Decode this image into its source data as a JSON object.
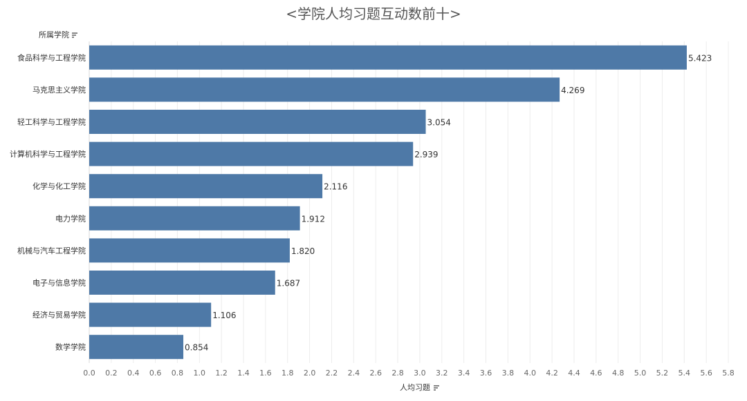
{
  "chart_data": {
    "type": "bar",
    "orientation": "horizontal",
    "title": "<学院人均习题互动数前十>",
    "ylabel": "所属学院",
    "xlabel": "人均习题",
    "categories": [
      "食品科学与工程学院",
      "马克思主义学院",
      "轻工科学与工程学院",
      "计算机科学与工程学院",
      "化学与化工学院",
      "电力学院",
      "机械与汽车工程学院",
      "电子与信息学院",
      "经济与贸易学院",
      "数学学院"
    ],
    "values": [
      5.423,
      4.269,
      3.054,
      2.939,
      2.116,
      1.912,
      1.82,
      1.687,
      1.106,
      0.854
    ],
    "value_labels": [
      "5.423",
      "4.269",
      "3.054",
      "2.939",
      "2.116",
      "1.912",
      "1.820",
      "1.687",
      "1.106",
      "0.854"
    ],
    "xlim": [
      0,
      5.8
    ],
    "x_ticks": [
      "0.0",
      "0.2",
      "0.4",
      "0.6",
      "0.8",
      "1.0",
      "1.2",
      "1.4",
      "1.6",
      "1.8",
      "2.0",
      "2.2",
      "2.4",
      "2.6",
      "2.8",
      "3.0",
      "3.2",
      "3.4",
      "3.6",
      "3.8",
      "4.0",
      "4.2",
      "4.4",
      "4.6",
      "4.8",
      "5.0",
      "5.2",
      "5.4",
      "5.6",
      "5.8"
    ],
    "grid": true,
    "bar_color": "#4e79a7",
    "sort_icon": "sort-descending-icon"
  }
}
